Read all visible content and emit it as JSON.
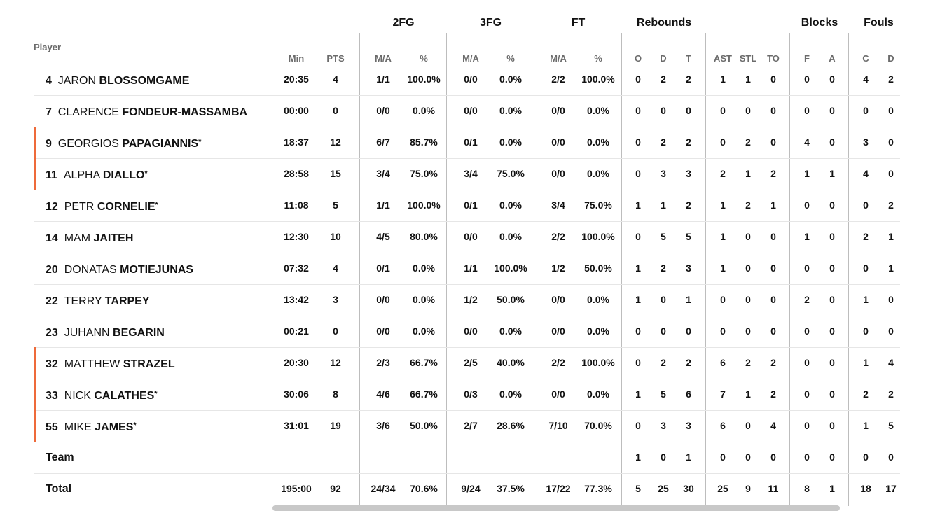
{
  "header": {
    "player_label": "Player",
    "groups": [
      "2FG",
      "3FG",
      "FT",
      "Rebounds",
      "Blocks",
      "Fouls"
    ],
    "columns": [
      "Min",
      "PTS",
      "M/A",
      "%",
      "M/A",
      "%",
      "M/A",
      "%",
      "O",
      "D",
      "T",
      "AST",
      "STL",
      "TO",
      "F",
      "A",
      "C",
      "D"
    ]
  },
  "colors": {
    "starter_accent": "#ee6a3a",
    "divider": "#bdbdbd",
    "row_border": "#e6e6e6",
    "scrollbar": "#c8c8c8"
  },
  "rows": [
    {
      "num": "4",
      "first": "JARON",
      "last": "BLOSSOMGAME",
      "star": "",
      "starter": false,
      "stats": [
        "20:35",
        "4",
        "1/1",
        "100.0%",
        "0/0",
        "0.0%",
        "2/2",
        "100.0%",
        "0",
        "2",
        "2",
        "1",
        "1",
        "0",
        "0",
        "0",
        "4",
        "2"
      ]
    },
    {
      "num": "7",
      "first": "CLARENCE",
      "last": "FONDEUR-MASSAMBA",
      "star": "",
      "starter": false,
      "stats": [
        "00:00",
        "0",
        "0/0",
        "0.0%",
        "0/0",
        "0.0%",
        "0/0",
        "0.0%",
        "0",
        "0",
        "0",
        "0",
        "0",
        "0",
        "0",
        "0",
        "0",
        "0"
      ]
    },
    {
      "num": "9",
      "first": "GEORGIOS",
      "last": "PAPAGIANNIS",
      "star": "*",
      "starter": true,
      "stats": [
        "18:37",
        "12",
        "6/7",
        "85.7%",
        "0/1",
        "0.0%",
        "0/0",
        "0.0%",
        "0",
        "2",
        "2",
        "0",
        "2",
        "0",
        "4",
        "0",
        "3",
        "0"
      ]
    },
    {
      "num": "11",
      "first": "ALPHA",
      "last": "DIALLO",
      "star": "*",
      "starter": true,
      "stats": [
        "28:58",
        "15",
        "3/4",
        "75.0%",
        "3/4",
        "75.0%",
        "0/0",
        "0.0%",
        "0",
        "3",
        "3",
        "2",
        "1",
        "2",
        "1",
        "1",
        "4",
        "0"
      ]
    },
    {
      "num": "12",
      "first": "PETR",
      "last": "CORNELIE",
      "star": "*",
      "starter": false,
      "stats": [
        "11:08",
        "5",
        "1/1",
        "100.0%",
        "0/1",
        "0.0%",
        "3/4",
        "75.0%",
        "1",
        "1",
        "2",
        "1",
        "2",
        "1",
        "0",
        "0",
        "0",
        "2"
      ]
    },
    {
      "num": "14",
      "first": "MAM",
      "last": "JAITEH",
      "star": "",
      "starter": false,
      "stats": [
        "12:30",
        "10",
        "4/5",
        "80.0%",
        "0/0",
        "0.0%",
        "2/2",
        "100.0%",
        "0",
        "5",
        "5",
        "1",
        "0",
        "0",
        "1",
        "0",
        "2",
        "1"
      ]
    },
    {
      "num": "20",
      "first": "DONATAS",
      "last": "MOTIEJUNAS",
      "star": "",
      "starter": false,
      "stats": [
        "07:32",
        "4",
        "0/1",
        "0.0%",
        "1/1",
        "100.0%",
        "1/2",
        "50.0%",
        "1",
        "2",
        "3",
        "1",
        "0",
        "0",
        "0",
        "0",
        "0",
        "1"
      ]
    },
    {
      "num": "22",
      "first": "TERRY",
      "last": "TARPEY",
      "star": "",
      "starter": false,
      "stats": [
        "13:42",
        "3",
        "0/0",
        "0.0%",
        "1/2",
        "50.0%",
        "0/0",
        "0.0%",
        "1",
        "0",
        "1",
        "0",
        "0",
        "0",
        "2",
        "0",
        "1",
        "0"
      ]
    },
    {
      "num": "23",
      "first": "JUHANN",
      "last": "BEGARIN",
      "star": "",
      "starter": false,
      "stats": [
        "00:21",
        "0",
        "0/0",
        "0.0%",
        "0/0",
        "0.0%",
        "0/0",
        "0.0%",
        "0",
        "0",
        "0",
        "0",
        "0",
        "0",
        "0",
        "0",
        "0",
        "0"
      ]
    },
    {
      "num": "32",
      "first": "MATTHEW",
      "last": "STRAZEL",
      "star": "",
      "starter": true,
      "stats": [
        "20:30",
        "12",
        "2/3",
        "66.7%",
        "2/5",
        "40.0%",
        "2/2",
        "100.0%",
        "0",
        "2",
        "2",
        "6",
        "2",
        "2",
        "0",
        "0",
        "1",
        "4"
      ]
    },
    {
      "num": "33",
      "first": "NICK",
      "last": "CALATHES",
      "star": "*",
      "starter": true,
      "stats": [
        "30:06",
        "8",
        "4/6",
        "66.7%",
        "0/3",
        "0.0%",
        "0/0",
        "0.0%",
        "1",
        "5",
        "6",
        "7",
        "1",
        "2",
        "0",
        "0",
        "2",
        "2"
      ]
    },
    {
      "num": "55",
      "first": "MIKE",
      "last": "JAMES",
      "star": "*",
      "starter": true,
      "stats": [
        "31:01",
        "19",
        "3/6",
        "50.0%",
        "2/7",
        "28.6%",
        "7/10",
        "70.0%",
        "0",
        "3",
        "3",
        "6",
        "0",
        "4",
        "0",
        "0",
        "1",
        "5"
      ]
    }
  ],
  "team_row": {
    "label": "Team",
    "stats": [
      "",
      "",
      "",
      "",
      "",
      "",
      "",
      "",
      "1",
      "0",
      "1",
      "0",
      "0",
      "0",
      "0",
      "0",
      "0",
      "0"
    ]
  },
  "total_row": {
    "label": "Total",
    "stats": [
      "195:00",
      "92",
      "24/34",
      "70.6%",
      "9/24",
      "37.5%",
      "17/22",
      "77.3%",
      "5",
      "25",
      "30",
      "25",
      "9",
      "11",
      "8",
      "1",
      "18",
      "17"
    ]
  }
}
